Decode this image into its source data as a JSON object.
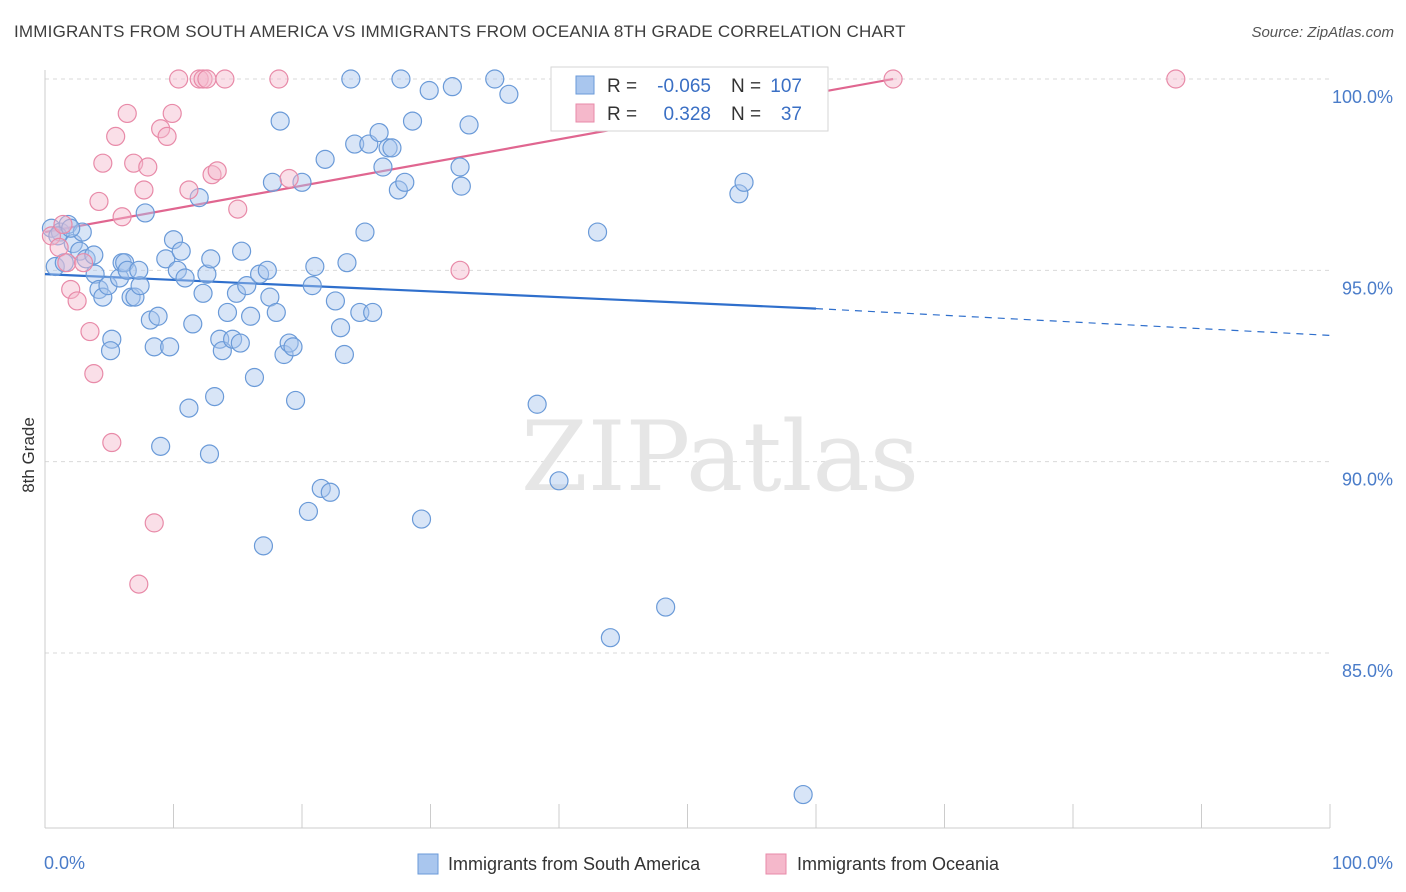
{
  "header": {
    "title": "IMMIGRANTS FROM SOUTH AMERICA VS IMMIGRANTS FROM OCEANIA 8TH GRADE CORRELATION CHART",
    "source": "Source: ZipAtlas.com"
  },
  "watermark": "ZIPatlas",
  "colors": {
    "blue_fill": "#a9c6ee",
    "blue_stroke": "#6a9ad8",
    "blue_line": "#2f6fcc",
    "pink_fill": "#f5b8cb",
    "pink_stroke": "#e88aa8",
    "pink_line": "#e06690",
    "axis_text": "#4a7cc9",
    "grid": "#d9d9d9"
  },
  "legend_box": {
    "r_label": "R =",
    "n_label": "N =",
    "rows": [
      {
        "r": "-0.065",
        "n": "107"
      },
      {
        "r": "0.328",
        "n": "37"
      }
    ]
  },
  "chart_data": {
    "type": "scatter",
    "title": "IMMIGRANTS FROM SOUTH AMERICA VS IMMIGRANTS FROM OCEANIA 8TH GRADE CORRELATION CHART",
    "xlabel": "",
    "ylabel": "8th Grade",
    "xlim": [
      0,
      100
    ],
    "ylim": [
      80.9,
      100.7
    ],
    "x_tick_labels": [
      "0.0%",
      "100.0%"
    ],
    "y_ticks": [
      85,
      90,
      95,
      100
    ],
    "y_tick_labels": [
      "85.0%",
      "90.0%",
      "95.0%",
      "100.0%"
    ],
    "grid": true,
    "legend_position": "bottom",
    "series": [
      {
        "name": "Immigrants from South America",
        "color": "#a9c6ee",
        "trend": {
          "x": [
            0,
            60,
            100
          ],
          "y": [
            94.9,
            94.0,
            93.3
          ],
          "dashed_from_x": 60
        },
        "points": [
          [
            0.5,
            96.1
          ],
          [
            0.8,
            95.1
          ],
          [
            1.2,
            96.0
          ],
          [
            1.5,
            95.2
          ],
          [
            1.8,
            96.2
          ],
          [
            2.2,
            95.7
          ],
          [
            2.7,
            95.5
          ],
          [
            2.9,
            96.0
          ],
          [
            3.2,
            95.3
          ],
          [
            3.8,
            95.4
          ],
          [
            3.9,
            94.9
          ],
          [
            4.2,
            94.5
          ],
          [
            4.5,
            94.3
          ],
          [
            4.9,
            94.6
          ],
          [
            5.2,
            93.2
          ],
          [
            5.1,
            92.9
          ],
          [
            5.8,
            94.8
          ],
          [
            6.0,
            95.2
          ],
          [
            6.2,
            95.2
          ],
          [
            6.4,
            95.0
          ],
          [
            6.7,
            94.3
          ],
          [
            7.0,
            94.3
          ],
          [
            7.4,
            94.6
          ],
          [
            7.8,
            96.5
          ],
          [
            8.2,
            93.7
          ],
          [
            8.5,
            93.0
          ],
          [
            8.8,
            93.8
          ],
          [
            9.0,
            90.4
          ],
          [
            9.4,
            95.3
          ],
          [
            9.7,
            93.0
          ],
          [
            10.0,
            95.8
          ],
          [
            10.3,
            95.0
          ],
          [
            10.6,
            95.5
          ],
          [
            10.9,
            94.8
          ],
          [
            11.2,
            91.4
          ],
          [
            11.5,
            93.6
          ],
          [
            12.0,
            96.9
          ],
          [
            12.3,
            94.4
          ],
          [
            12.6,
            94.9
          ],
          [
            12.8,
            90.2
          ],
          [
            12.9,
            95.3
          ],
          [
            13.2,
            91.7
          ],
          [
            13.6,
            93.2
          ],
          [
            13.8,
            92.9
          ],
          [
            14.2,
            93.9
          ],
          [
            14.6,
            93.2
          ],
          [
            14.9,
            94.4
          ],
          [
            15.2,
            93.1
          ],
          [
            15.3,
            95.5
          ],
          [
            15.7,
            94.6
          ],
          [
            16.0,
            93.8
          ],
          [
            16.3,
            92.2
          ],
          [
            16.7,
            94.9
          ],
          [
            17.0,
            87.8
          ],
          [
            17.3,
            95.0
          ],
          [
            17.5,
            94.3
          ],
          [
            17.7,
            97.3
          ],
          [
            18.0,
            93.9
          ],
          [
            18.3,
            98.9
          ],
          [
            18.6,
            92.8
          ],
          [
            19.0,
            93.1
          ],
          [
            19.3,
            93.0
          ],
          [
            19.5,
            91.6
          ],
          [
            20.0,
            97.3
          ],
          [
            20.5,
            88.7
          ],
          [
            20.8,
            94.6
          ],
          [
            21.0,
            95.1
          ],
          [
            21.5,
            89.3
          ],
          [
            21.8,
            97.9
          ],
          [
            22.2,
            89.2
          ],
          [
            22.6,
            94.2
          ],
          [
            23.0,
            93.5
          ],
          [
            23.3,
            92.8
          ],
          [
            23.5,
            95.2
          ],
          [
            23.8,
            100.0
          ],
          [
            24.1,
            98.3
          ],
          [
            24.5,
            93.9
          ],
          [
            24.9,
            96.0
          ],
          [
            25.2,
            98.3
          ],
          [
            25.5,
            93.9
          ],
          [
            26.0,
            98.6
          ],
          [
            26.3,
            97.7
          ],
          [
            26.7,
            98.2
          ],
          [
            27.0,
            98.2
          ],
          [
            27.5,
            97.1
          ],
          [
            27.7,
            100.0
          ],
          [
            28.0,
            97.3
          ],
          [
            28.6,
            98.9
          ],
          [
            29.3,
            88.5
          ],
          [
            29.9,
            99.7
          ],
          [
            31.7,
            99.8
          ],
          [
            32.3,
            97.7
          ],
          [
            32.4,
            97.2
          ],
          [
            33.0,
            98.8
          ],
          [
            35.0,
            100.0
          ],
          [
            36.1,
            99.6
          ],
          [
            38.3,
            91.5
          ],
          [
            40.0,
            89.5
          ],
          [
            43.0,
            96.0
          ],
          [
            44.0,
            85.4
          ],
          [
            48.3,
            86.2
          ],
          [
            54.0,
            97.0
          ],
          [
            54.4,
            97.3
          ],
          [
            59.0,
            81.3
          ],
          [
            1.0,
            95.9
          ],
          [
            2.0,
            96.1
          ],
          [
            7.3,
            95.0
          ]
        ]
      },
      {
        "name": "Immigrants from Oceania",
        "color": "#f5b8cb",
        "trend": {
          "x": [
            0,
            66
          ],
          "y": [
            96.0,
            100.0
          ]
        },
        "points": [
          [
            0.5,
            95.9
          ],
          [
            1.1,
            95.6
          ],
          [
            1.4,
            96.2
          ],
          [
            1.7,
            95.2
          ],
          [
            2.0,
            94.5
          ],
          [
            2.5,
            94.2
          ],
          [
            3.0,
            95.2
          ],
          [
            3.5,
            93.4
          ],
          [
            3.8,
            92.3
          ],
          [
            4.2,
            96.8
          ],
          [
            4.5,
            97.8
          ],
          [
            5.2,
            90.5
          ],
          [
            5.5,
            98.5
          ],
          [
            6.0,
            96.4
          ],
          [
            6.4,
            99.1
          ],
          [
            6.9,
            97.8
          ],
          [
            7.3,
            86.8
          ],
          [
            7.7,
            97.1
          ],
          [
            8.0,
            97.7
          ],
          [
            8.5,
            88.4
          ],
          [
            9.0,
            98.7
          ],
          [
            9.5,
            98.5
          ],
          [
            9.9,
            99.1
          ],
          [
            10.4,
            100.0
          ],
          [
            11.2,
            97.1
          ],
          [
            12.0,
            100.0
          ],
          [
            12.3,
            100.0
          ],
          [
            12.6,
            100.0
          ],
          [
            13.0,
            97.5
          ],
          [
            13.4,
            97.6
          ],
          [
            14.0,
            100.0
          ],
          [
            15.0,
            96.6
          ],
          [
            18.2,
            100.0
          ],
          [
            19.0,
            97.4
          ],
          [
            32.3,
            95.0
          ],
          [
            66.0,
            100.0
          ],
          [
            88.0,
            100.0
          ]
        ]
      }
    ]
  }
}
